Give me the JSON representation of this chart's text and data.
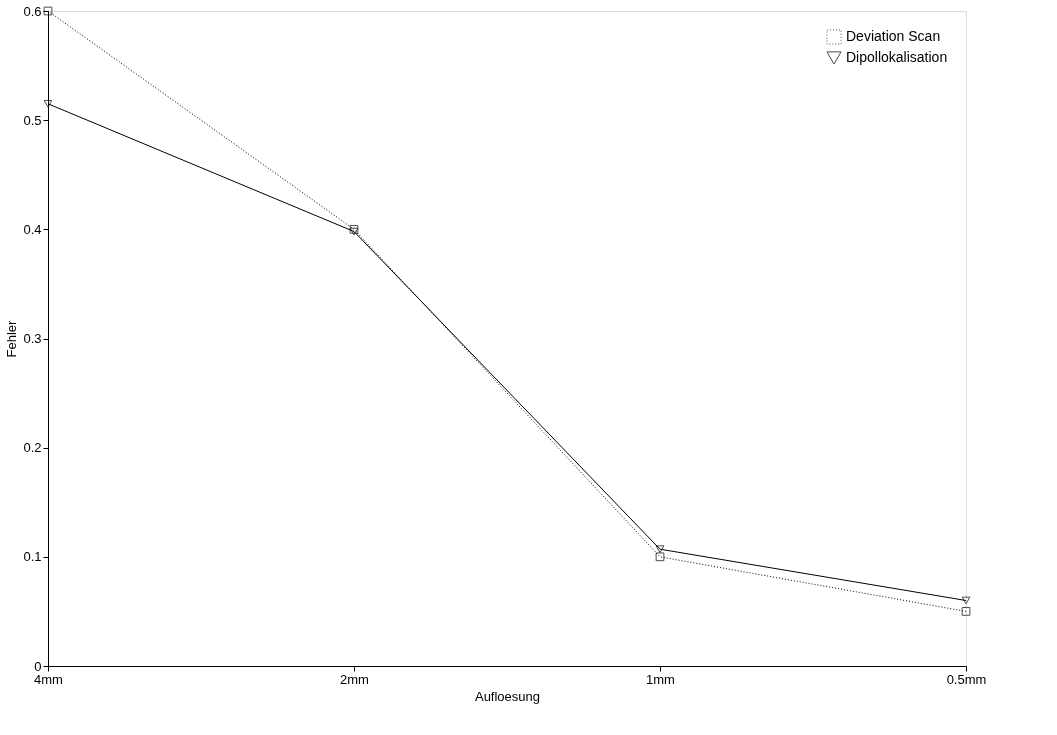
{
  "chart_data": {
    "type": "line",
    "xlabel": "Aufloesung",
    "ylabel": "Fehler",
    "categories": [
      "4mm",
      "2mm",
      "1mm",
      "0.5mm"
    ],
    "series": [
      {
        "name": "Deviation Scan",
        "color": "#000000",
        "values": [
          0.6,
          0.4,
          0.1,
          0.05
        ],
        "marker": "square",
        "line_style": "dotted"
      },
      {
        "name": "Dipollokalisation",
        "color": "#000000",
        "values": [
          0.515,
          0.398,
          0.107,
          0.06
        ],
        "marker": "triangle",
        "line_style": "solid"
      }
    ],
    "ylim": [
      0,
      0.6
    ],
    "yticks": [
      0,
      0.1,
      0.2,
      0.3,
      0.4,
      0.5,
      0.6
    ],
    "grid": false,
    "legend": "top right"
  }
}
